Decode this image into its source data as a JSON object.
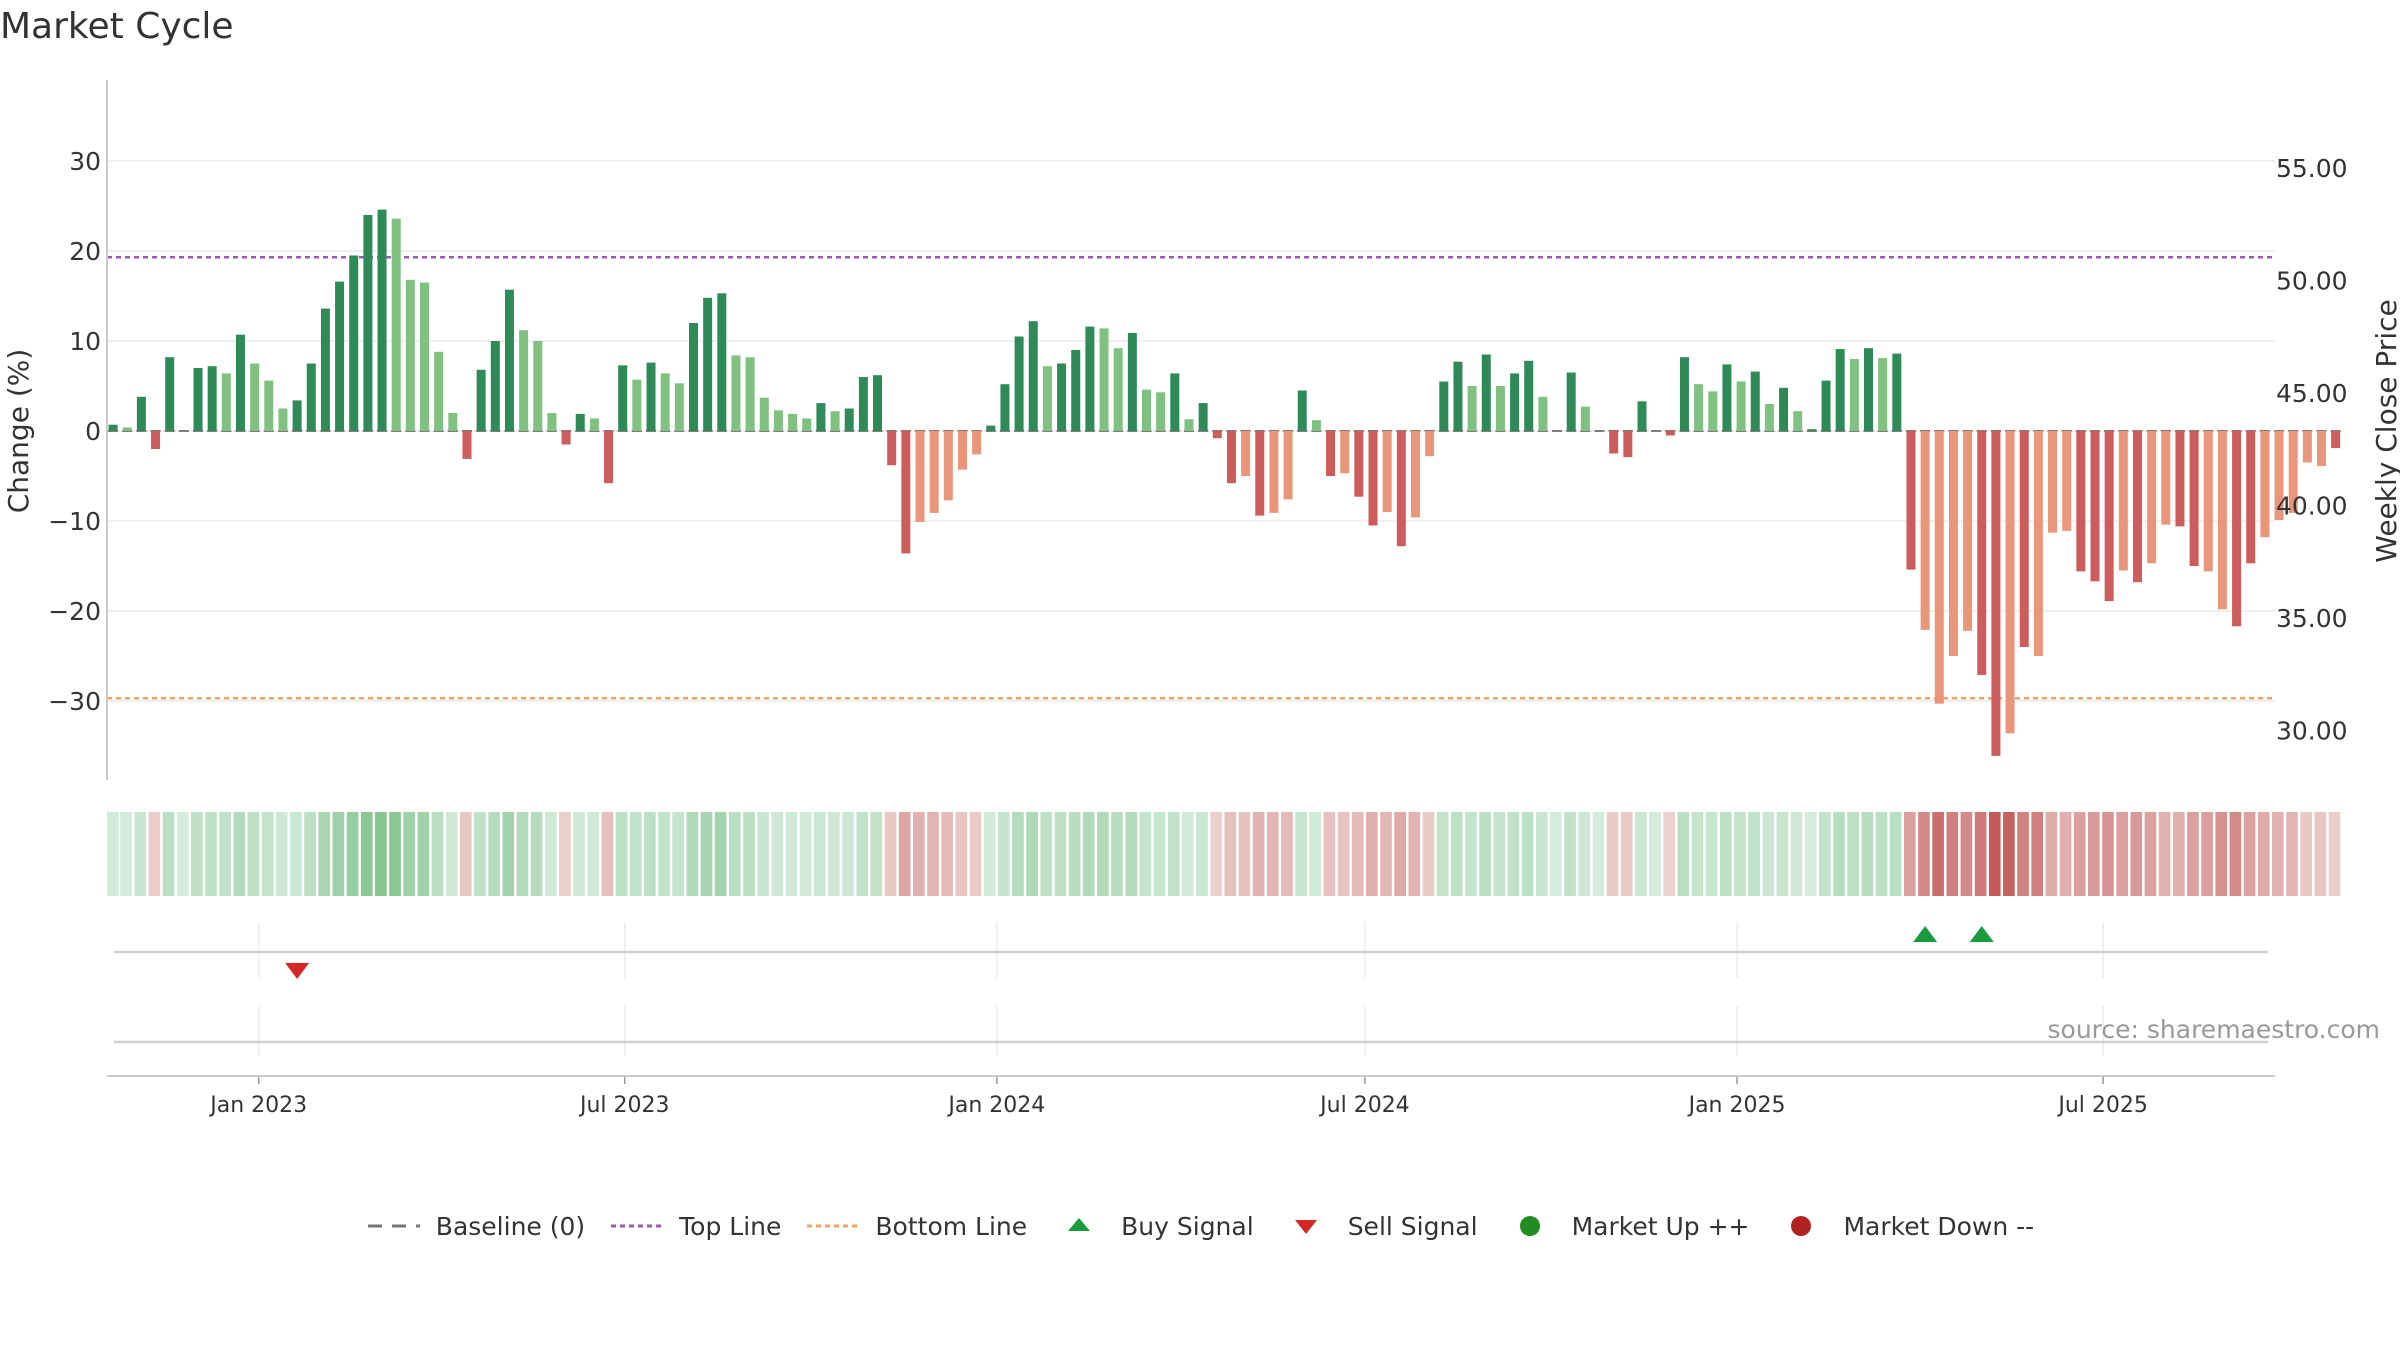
{
  "title": "Market Cycle",
  "source": "source: sharemaestro.com",
  "colors": {
    "up_dark": "#2e8b57",
    "up_light": "#80c080",
    "down_dark": "#cd5c5c",
    "down_light": "#e9967a",
    "top_line": "#9b59b6",
    "bottom_line": "#f4a460",
    "baseline": "#777777",
    "buy": "#1a9c3e",
    "sell": "#d62728",
    "market_up": "#228b22",
    "market_down": "#b22222"
  },
  "legend": [
    {
      "label": "Baseline (0)",
      "icon": "dash-line-icon"
    },
    {
      "label": "Top Line",
      "icon": "dotted-purple-line-icon"
    },
    {
      "label": "Bottom Line",
      "icon": "dotted-orange-line-icon"
    },
    {
      "label": "Buy Signal",
      "icon": "triangle-up-icon"
    },
    {
      "label": "Sell Signal",
      "icon": "triangle-down-icon"
    },
    {
      "label": "Market Up ++",
      "icon": "green-dot-icon"
    },
    {
      "label": "Market Down --",
      "icon": "red-dot-icon"
    }
  ],
  "chart_data": {
    "type": "bar",
    "title": "Market Cycle",
    "ylabel": "Change (%)",
    "y2label": "Weekly Close Price",
    "ylim": [
      -39,
      39
    ],
    "yticks": [
      30,
      20,
      10,
      0,
      -10,
      -20,
      -30
    ],
    "ytick_labels": [
      "30",
      "20",
      "10",
      "0",
      "−10",
      "−20",
      "−30"
    ],
    "y2lim": [
      27.6,
      56.8
    ],
    "y2ticks": [
      55,
      50,
      45,
      40,
      35,
      30
    ],
    "y2tick_labels": [
      "55.00",
      "50.00",
      "45.00",
      "40.00",
      "35.00",
      "30.00"
    ],
    "xlim": [
      "2022-10-18",
      "2025-09-24"
    ],
    "xticks": [
      "2023-01-01",
      "2023-07-01",
      "2024-01-01",
      "2024-07-01",
      "2025-01-01",
      "2025-07-01"
    ],
    "xtick_labels": [
      "Jan 2023",
      "Jul 2023",
      "Jan 2024",
      "Jul 2024",
      "Jan 2025",
      "Jul 2025"
    ],
    "start_week": "2022-10-21",
    "top_line": 19.3,
    "bottom_line": -29.7,
    "series": [
      {
        "values": [
          0.7,
          0.4,
          3.8,
          -2.0,
          8.2,
          0.0,
          7.0,
          7.2,
          6.4,
          10.7,
          7.5,
          5.6,
          2.5,
          3.4,
          7.5,
          13.6,
          16.6,
          19.5,
          24.0,
          24.6,
          23.6,
          16.8,
          16.5,
          8.8,
          2.0,
          -3.1,
          6.8,
          10.0,
          15.7,
          11.2,
          10.0,
          2.0,
          -1.5,
          1.9,
          1.4,
          -5.8,
          7.3,
          5.7,
          7.6,
          6.4,
          5.3,
          12.0,
          14.8,
          15.3,
          8.4,
          8.2,
          3.7,
          2.3,
          1.9,
          1.4,
          3.1,
          2.2,
          2.5,
          6.0,
          6.2,
          -3.8,
          -13.6,
          -10.1,
          -9.1,
          -7.7,
          -4.3,
          -2.6,
          0.6,
          5.2,
          10.5,
          12.2,
          7.2,
          7.5,
          9.0,
          11.6,
          11.4,
          9.2,
          10.9,
          4.6,
          4.3,
          6.4,
          1.3,
          3.1,
          -0.8,
          -5.8,
          -5.0,
          -9.4,
          -9.1,
          -7.6,
          4.5,
          1.2,
          -5.0,
          -4.7,
          -7.3,
          -10.5,
          -9.0,
          -12.8,
          -9.6,
          -2.8,
          5.5,
          7.7,
          5.0,
          8.5,
          5.0,
          6.4,
          7.8,
          3.8,
          0.0,
          6.5,
          2.7,
          0.0,
          -2.5,
          -2.9,
          3.3,
          0.0,
          -0.5,
          8.2,
          5.2,
          4.4,
          7.4,
          5.5,
          6.6,
          3.0,
          4.8,
          2.2,
          0.2,
          5.6,
          9.1,
          8.0,
          9.2,
          8.1,
          8.6,
          -15.4,
          -22.1,
          -30.3,
          -25.0,
          -22.2,
          -27.1,
          -36.1,
          -33.6,
          -24.0,
          -25.0,
          -11.3,
          -11.1,
          -15.6,
          -16.7,
          -18.9,
          -15.5,
          -16.8,
          -14.7,
          -10.4,
          -10.6,
          -15.0,
          -15.6,
          -19.8,
          -21.7,
          -14.7,
          -11.8,
          -9.9,
          -9.1,
          -3.5,
          -3.9,
          -1.9
        ]
      }
    ],
    "bar_shade": [
      "d",
      "l",
      "d",
      "d",
      "d",
      "d",
      "d",
      "d",
      "l",
      "d",
      "l",
      "l",
      "l",
      "d",
      "d",
      "d",
      "d",
      "d",
      "d",
      "d",
      "l",
      "l",
      "l",
      "l",
      "l",
      "d",
      "d",
      "d",
      "d",
      "l",
      "l",
      "l",
      "d",
      "d",
      "l",
      "d",
      "d",
      "l",
      "d",
      "l",
      "l",
      "d",
      "d",
      "d",
      "l",
      "l",
      "l",
      "l",
      "l",
      "l",
      "d",
      "l",
      "d",
      "d",
      "d",
      "d",
      "d",
      "l",
      "l",
      "l",
      "l",
      "l",
      "d",
      "d",
      "d",
      "d",
      "l",
      "d",
      "d",
      "d",
      "l",
      "l",
      "d",
      "l",
      "l",
      "d",
      "l",
      "d",
      "d",
      "d",
      "l",
      "d",
      "l",
      "l",
      "d",
      "l",
      "d",
      "l",
      "d",
      "d",
      "l",
      "d",
      "l",
      "l",
      "d",
      "d",
      "l",
      "d",
      "l",
      "d",
      "d",
      "l",
      "l",
      "d",
      "l",
      "l",
      "d",
      "d",
      "d",
      "l",
      "d",
      "d",
      "l",
      "l",
      "d",
      "l",
      "d",
      "l",
      "d",
      "l",
      "d",
      "d",
      "d",
      "l",
      "d",
      "l",
      "d",
      "d",
      "l",
      "l",
      "l",
      "l",
      "d",
      "d",
      "l",
      "d",
      "l",
      "l",
      "l",
      "d",
      "d",
      "d",
      "l",
      "d",
      "l",
      "l",
      "d",
      "d",
      "l",
      "l",
      "d",
      "d",
      "l",
      "l",
      "l",
      "l",
      "l",
      "d",
      "l"
    ],
    "price": [],
    "regime_strip": {
      "values": [
        0.7,
        0.4,
        3.8,
        -2.0,
        8.2,
        0.0,
        7.0,
        7.2,
        6.4,
        10.7,
        7.5,
        5.6,
        2.5,
        3.4,
        7.5,
        13.6,
        16.6,
        19.5,
        24.0,
        24.6,
        23.6,
        16.8,
        16.5,
        8.8,
        2.0,
        -3.1,
        6.8,
        10.0,
        15.7,
        11.2,
        10.0,
        2.0,
        -1.5,
        1.9,
        1.4,
        -5.8,
        7.3,
        5.7,
        7.6,
        6.4,
        5.3,
        12.0,
        14.8,
        15.3,
        8.4,
        8.2,
        3.7,
        2.3,
        1.9,
        1.4,
        3.1,
        2.2,
        2.5,
        6.0,
        6.2,
        -3.8,
        -13.6,
        -10.1,
        -9.1,
        -7.7,
        -4.3,
        -2.6,
        0.6,
        5.2,
        10.5,
        12.2,
        7.2,
        7.5,
        9.0,
        11.6,
        11.4,
        9.2,
        10.9,
        4.6,
        4.3,
        6.4,
        1.3,
        3.1,
        -0.8,
        -5.8,
        -5.0,
        -9.4,
        -9.1,
        -7.6,
        4.5,
        1.2,
        -5.0,
        -4.7,
        -7.3,
        -10.5,
        -9.0,
        -12.8,
        -9.6,
        -2.8,
        5.5,
        7.7,
        5.0,
        8.5,
        5.0,
        6.4,
        7.8,
        3.8,
        0.0,
        6.5,
        2.7,
        0.0,
        -2.5,
        -2.9,
        3.3,
        0.0,
        -0.5,
        8.2,
        5.2,
        4.4,
        7.4,
        5.5,
        6.6,
        3.0,
        4.8,
        2.2,
        0.2,
        5.6,
        9.1,
        8.0,
        9.2,
        8.1,
        8.6,
        -15.4,
        -22.1,
        -30.3,
        -25.0,
        -22.2,
        -27.1,
        -36.1,
        -33.6,
        -24.0,
        -25.0,
        -11.3,
        -11.1,
        -15.6,
        -16.7,
        -18.9,
        -15.5,
        -16.8,
        -14.7,
        -10.4,
        -10.6,
        -15.0,
        -15.6,
        -19.8,
        -21.7,
        -14.7,
        -11.8,
        -9.9,
        -9.1,
        -3.5,
        -3.9,
        -1.9
      ]
    },
    "signals": [
      {
        "type": "sell",
        "date": "2023-01-20"
      },
      {
        "type": "buy",
        "date": "2025-04-04"
      },
      {
        "type": "buy",
        "date": "2025-05-02"
      }
    ],
    "legend_position": "bottom",
    "grid": true
  }
}
